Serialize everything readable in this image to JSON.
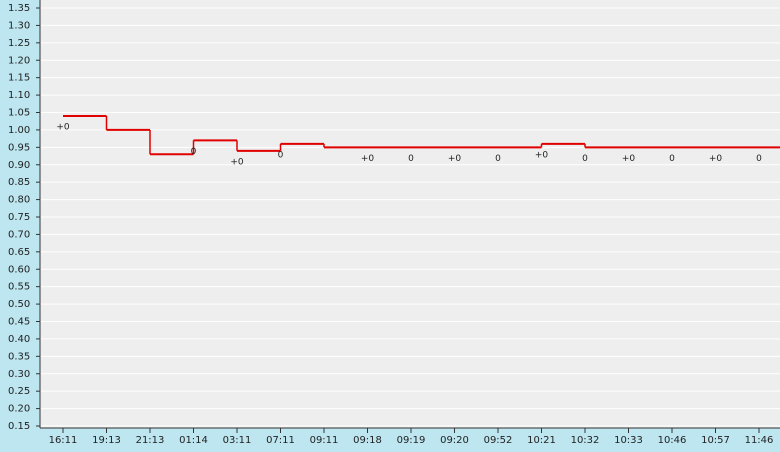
{
  "chart_data": {
    "type": "step",
    "categories": [
      "16:11",
      "19:13",
      "21:13",
      "01:14",
      "03:11",
      "07:11",
      "09:11",
      "09:18",
      "09:19",
      "09:20",
      "09:52",
      "10:21",
      "10:32",
      "10:33",
      "10:46",
      "10:57",
      "11:46"
    ],
    "series": [
      {
        "color": "#e00000",
        "values": [
          1.04,
          1.0,
          0.93,
          0.97,
          0.94,
          0.96,
          0.95,
          0.95,
          0.95,
          0.95,
          0.95,
          0.96,
          0.95,
          0.95,
          0.95,
          0.95,
          0.95
        ]
      }
    ],
    "point_labels": [
      "+0",
      null,
      null,
      "0",
      "+0",
      "0",
      null,
      "+0",
      "0",
      "+0",
      "0",
      "+0",
      "0",
      "+0",
      "0",
      "+0",
      "0"
    ],
    "ylim": [
      0.15,
      1.35
    ],
    "yticks": [
      {
        "value": 0.15,
        "label": "0.15"
      },
      {
        "value": 0.2,
        "label": "0.20"
      },
      {
        "value": 0.25,
        "label": "0.25"
      },
      {
        "value": 0.3,
        "label": "0.30"
      },
      {
        "value": 0.35,
        "label": "0.35"
      },
      {
        "value": 0.4,
        "label": "0.40"
      },
      {
        "value": 0.45,
        "label": "0.45"
      },
      {
        "value": 0.5,
        "label": "0.50"
      },
      {
        "value": 0.55,
        "label": "0.55"
      },
      {
        "value": 0.6,
        "label": "0.60"
      },
      {
        "value": 0.65,
        "label": "0.65"
      },
      {
        "value": 0.7,
        "label": "0.70"
      },
      {
        "value": 0.75,
        "label": "0.75"
      },
      {
        "value": 0.8,
        "label": "0.80"
      },
      {
        "value": 0.85,
        "label": "0.85"
      },
      {
        "value": 0.9,
        "label": "0.90"
      },
      {
        "value": 0.95,
        "label": "0.95"
      },
      {
        "value": 1.0,
        "label": "1.00"
      },
      {
        "value": 1.05,
        "label": "1.05"
      },
      {
        "value": 1.1,
        "label": "1.10"
      },
      {
        "value": 1.15,
        "label": "1.15"
      },
      {
        "value": 1.2,
        "label": "1.20"
      },
      {
        "value": 1.25,
        "label": "1.25"
      },
      {
        "value": 1.3,
        "label": "1.30"
      },
      {
        "value": 1.35,
        "label": "1.35"
      }
    ],
    "grid": true
  }
}
